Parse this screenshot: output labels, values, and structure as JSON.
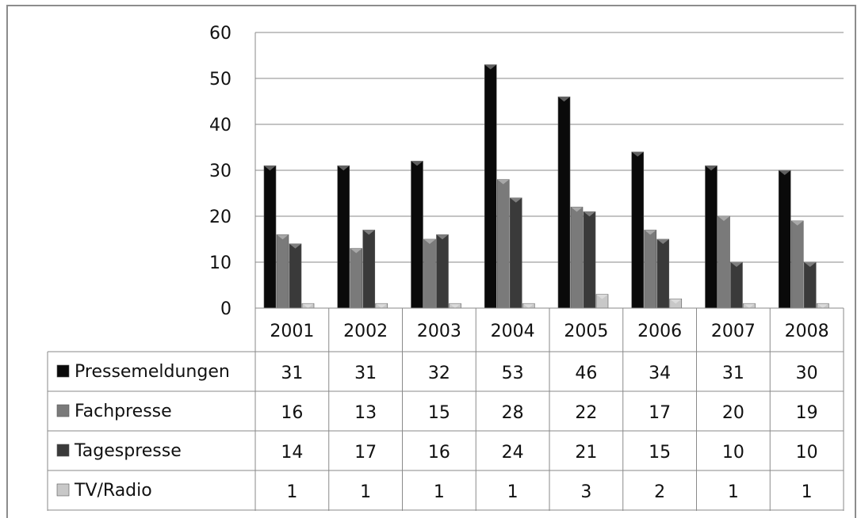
{
  "chart_data": {
    "type": "bar",
    "categories": [
      "2001",
      "2002",
      "2003",
      "2004",
      "2005",
      "2006",
      "2007",
      "2008"
    ],
    "series": [
      {
        "name": "Pressemeldungen",
        "values": [
          31,
          31,
          32,
          53,
          46,
          34,
          31,
          30
        ],
        "color": "#0a0a0a"
      },
      {
        "name": "Fachpresse",
        "values": [
          16,
          13,
          15,
          28,
          22,
          17,
          20,
          19
        ],
        "color": "#7a7a7a"
      },
      {
        "name": "Tagespresse",
        "values": [
          14,
          17,
          16,
          24,
          21,
          15,
          10,
          10
        ],
        "color": "#3a3a3a"
      },
      {
        "name": "TV/Radio",
        "values": [
          1,
          1,
          1,
          1,
          3,
          2,
          1,
          1
        ],
        "color": "#c8c8c8"
      }
    ],
    "ylim": [
      0,
      60
    ],
    "yticks": [
      0,
      10,
      20,
      30,
      40,
      50,
      60
    ],
    "grid": true,
    "legend": "data-table"
  }
}
